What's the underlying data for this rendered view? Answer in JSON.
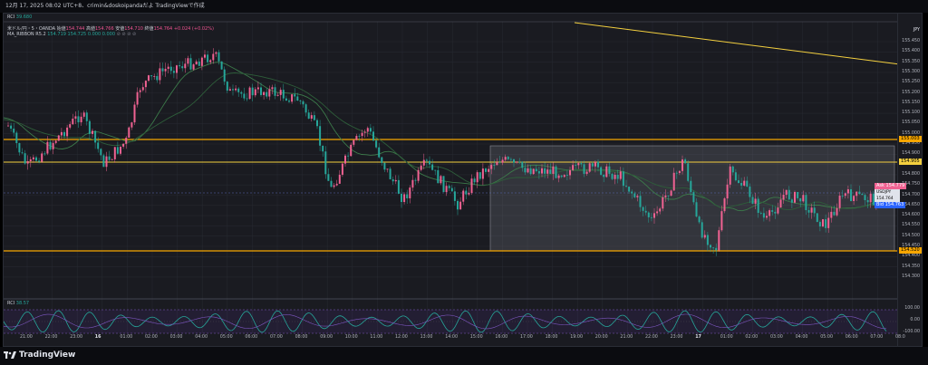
{
  "topbar": {
    "text": "12月 17, 2025 08:02 UTC+8、crimin&doskoipandaだよ TradingViewで作成"
  },
  "legend": {
    "rci_tag": "RCI",
    "rci_tag_value": "39.680",
    "symbol_line": "米ドル/円・5・OANDA",
    "open_label": "始値",
    "open_value": "154.744",
    "high_label": "高値",
    "high_value": "154.766",
    "low_label": "安値",
    "low_value": "154.710",
    "close_label": "終値",
    "close_value": "154.764",
    "change": "+0.024 (+0.02%)",
    "ribbon_line": "MA_RIBBON R5.2",
    "ribbon_values": [
      "154.719",
      "154.725",
      "0.000",
      "0.000"
    ],
    "ribbon_icons": "⊘ ⊘ ⊘ ⊘"
  },
  "axis": {
    "currency": "JPY",
    "ticks": [
      "155.450",
      "155.400",
      "155.350",
      "155.300",
      "155.250",
      "155.200",
      "155.150",
      "155.100",
      "155.050",
      "155.000",
      "154.950",
      "154.900",
      "154.850",
      "154.800",
      "154.750",
      "154.700",
      "154.650",
      "154.600",
      "154.550",
      "154.500",
      "154.450",
      "154.400",
      "154.350",
      "154.300"
    ],
    "level_high": "155.003",
    "level_mid": "154.905",
    "level_low": "154.520",
    "ask_label": "Ask",
    "ask_value": "154.779",
    "sym_label": "USDJPY",
    "sym_value": "154.764",
    "countdown": "02:11",
    "bid_label": "Bid",
    "bid_value": "154.763",
    "rci_ticks": [
      "100.00",
      "0.00",
      "-100.00"
    ]
  },
  "rci_pane": {
    "label": "RCI",
    "value": "38.57"
  },
  "time_axis": [
    "21:00",
    "22:00",
    "23:00",
    "16",
    "01:00",
    "02:00",
    "03:00",
    "04:00",
    "05:00",
    "06:00",
    "07:00",
    "08:00",
    "09:00",
    "10:00",
    "11:00",
    "12:00",
    "13:00",
    "14:00",
    "15:00",
    "16:00",
    "17:00",
    "18:00",
    "19:00",
    "20:00",
    "21:00",
    "22:00",
    "23:00",
    "17",
    "01:00",
    "02:00",
    "03:00",
    "04:00",
    "05:00",
    "06:00",
    "07:00",
    "08:0"
  ],
  "footer": {
    "brand": "TradingView"
  },
  "colors": {
    "up": "#f06292",
    "down": "#26a69a",
    "level_orange": "#f7a600",
    "level_yellow": "#f4d03f",
    "panel_bg": "#1a1b21"
  }
}
